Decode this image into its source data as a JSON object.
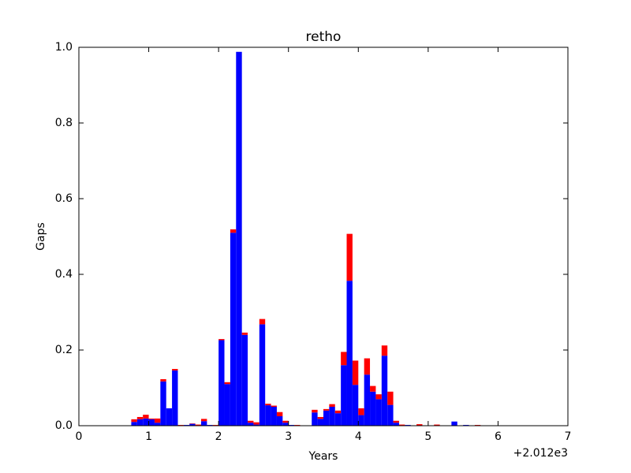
{
  "chart_data": {
    "type": "histogram",
    "title": "retho",
    "xlabel": "Years",
    "ylabel": "Gaps",
    "x_offset_label": "+2.012e3",
    "stacked": true,
    "bins": [
      0.75,
      0.8333,
      0.9167,
      1.0,
      1.0833,
      1.1667,
      1.25,
      1.3333,
      1.4167,
      1.5,
      1.5833,
      1.6667,
      1.75,
      1.8333,
      1.9167,
      2.0,
      2.0833,
      2.1667,
      2.25,
      2.3333,
      2.4167,
      2.5,
      2.5833,
      2.6667,
      2.75,
      2.8333,
      2.9167,
      3.0,
      3.0833,
      3.1667,
      3.25,
      3.3333,
      3.4167,
      3.5,
      3.5833,
      3.6667,
      3.75,
      3.8333,
      3.9167,
      4.0,
      4.0833,
      4.1667,
      4.25,
      4.3333,
      4.4167,
      4.5,
      4.5833,
      4.6667,
      4.75,
      4.8333,
      4.9167,
      5.0,
      5.0833,
      5.1667,
      5.25,
      5.3333,
      5.4167,
      5.5,
      5.5833,
      5.6667,
      5.75,
      5.8333
    ],
    "series": [
      {
        "color": "#0000ff",
        "values": [
          0.01,
          0.017,
          0.019,
          0.017,
          0.008,
          0.117,
          0.046,
          0.146,
          0,
          0.002,
          0.005,
          0,
          0.012,
          0.002,
          0,
          0.226,
          0.11,
          0.51,
          0.988,
          0.24,
          0.008,
          0.003,
          0.268,
          0.054,
          0.05,
          0.025,
          0.008,
          0.002,
          0,
          0,
          0,
          0.035,
          0.018,
          0.04,
          0.05,
          0.033,
          0.16,
          0.383,
          0.108,
          0.028,
          0.135,
          0.09,
          0.07,
          0.185,
          0.055,
          0.008,
          0,
          0.002,
          0,
          0,
          0,
          0,
          0,
          0,
          0,
          0.011,
          0,
          0.002,
          0,
          0,
          0
        ]
      },
      {
        "color": "#ff0000",
        "values": [
          0.007,
          0.006,
          0.01,
          0.002,
          0.011,
          0.006,
          0,
          0.004,
          0.002,
          0,
          0.001,
          0.003,
          0.006,
          0,
          0.002,
          0.003,
          0.005,
          0.009,
          0,
          0.006,
          0.005,
          0.006,
          0.014,
          0.004,
          0.003,
          0.011,
          0.005,
          0,
          0.002,
          0,
          0,
          0.007,
          0.005,
          0.004,
          0.007,
          0.007,
          0.035,
          0.124,
          0.064,
          0.018,
          0.043,
          0.015,
          0.013,
          0.027,
          0.035,
          0.005,
          0.003,
          0,
          0,
          0.004,
          0,
          0,
          0.003,
          0,
          0,
          0,
          0,
          0,
          0,
          0.002,
          0
        ]
      }
    ],
    "xlim": [
      0,
      7
    ],
    "xticks": [
      0,
      1,
      2,
      3,
      4,
      5,
      6,
      7
    ],
    "ylim": [
      0,
      1.0
    ],
    "yticks": [
      {
        "value": 0,
        "label": "0.0"
      },
      {
        "value": 0.2,
        "label": "0.2"
      },
      {
        "value": 0.4,
        "label": "0.4"
      },
      {
        "value": 0.6,
        "label": "0.6"
      },
      {
        "value": 0.8,
        "label": "0.8"
      },
      {
        "value": 1.0,
        "label": "1.0"
      }
    ]
  }
}
